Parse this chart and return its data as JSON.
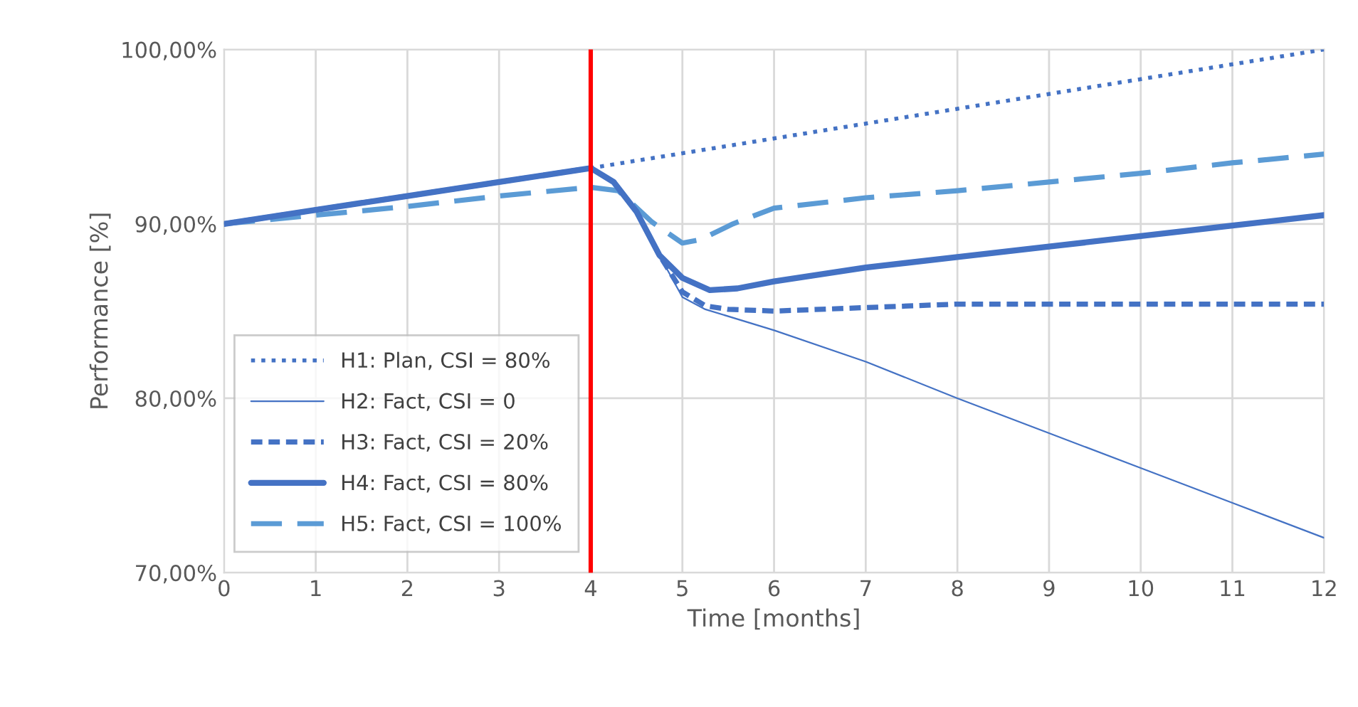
{
  "chart_data": {
    "type": "line",
    "xlabel": "Time [months]",
    "ylabel": "Performance [%]",
    "xlim": [
      0,
      12
    ],
    "xticks": [
      0,
      1,
      2,
      3,
      4,
      5,
      6,
      7,
      8,
      9,
      10,
      11,
      12
    ],
    "ylim": [
      70,
      100
    ],
    "yticks": [
      {
        "value": 70,
        "label": "70,00%"
      },
      {
        "value": 80,
        "label": "80,00%"
      },
      {
        "value": 90,
        "label": "90,00%"
      },
      {
        "value": 100,
        "label": "100,00%"
      }
    ],
    "grid": true,
    "legend": "bottom left",
    "marker": "none",
    "ref_lines": [
      {
        "axis": "x",
        "value": 4,
        "color": "#ff0000",
        "line_style": "solid"
      }
    ],
    "series": [
      {
        "name": "H1: Plan, CSI = 80%",
        "color": "#4472c4",
        "line_style": "dotted",
        "x": [
          0,
          1,
          2,
          3,
          4,
          12
        ],
        "values": [
          90,
          90.8,
          91.6,
          92.4,
          93.2,
          100
        ]
      },
      {
        "name": "H2: Fact, CSI = 0",
        "color": "#4472c4",
        "line_style": "solid",
        "x": [
          0,
          1,
          2,
          3,
          4,
          4.25,
          4.5,
          4.75,
          5,
          5.25,
          6,
          7,
          8,
          9,
          10,
          11,
          12
        ],
        "values": [
          90,
          90.8,
          91.6,
          92.4,
          93.2,
          92.4,
          90.7,
          88.2,
          85.8,
          85.1,
          83.9,
          82.1,
          80.0,
          78.0,
          76.0,
          74.0,
          72.0
        ]
      },
      {
        "name": "H3: Fact, CSI = 20%",
        "color": "#4472c4",
        "line_style": "dashed",
        "x": [
          0,
          1,
          2,
          3,
          4,
          4.25,
          4.5,
          4.75,
          5,
          5.25,
          5.5,
          6,
          7,
          8,
          9,
          10,
          11,
          12
        ],
        "values": [
          90,
          90.8,
          91.6,
          92.4,
          93.2,
          92.4,
          90.7,
          88.2,
          86.1,
          85.3,
          85.1,
          85.0,
          85.2,
          85.4,
          85.4,
          85.4,
          85.4,
          85.4
        ]
      },
      {
        "name": "H4: Fact, CSI = 80%",
        "color": "#4472c4",
        "line_style": "solid",
        "x": [
          0,
          1,
          2,
          3,
          4,
          4.25,
          4.5,
          4.75,
          5,
          5.3,
          5.6,
          6,
          7,
          8,
          9,
          10,
          11,
          12
        ],
        "values": [
          90,
          90.8,
          91.6,
          92.4,
          93.2,
          92.4,
          90.7,
          88.2,
          86.9,
          86.2,
          86.3,
          86.7,
          87.5,
          88.1,
          88.7,
          89.3,
          89.9,
          90.5
        ]
      },
      {
        "name": "H5: Fact, CSI = 100%",
        "color": "#5b9bd5",
        "line_style": "dashed",
        "x": [
          0,
          1,
          2,
          3,
          4,
          4.3,
          4.67,
          5,
          5.2,
          5.55,
          6,
          7,
          8,
          9,
          10,
          11,
          12
        ],
        "values": [
          90,
          90.5,
          91.0,
          91.6,
          92.1,
          91.9,
          90.1,
          88.9,
          89.1,
          90.0,
          90.9,
          91.5,
          91.9,
          92.4,
          92.9,
          93.5,
          94.0
        ]
      }
    ]
  }
}
